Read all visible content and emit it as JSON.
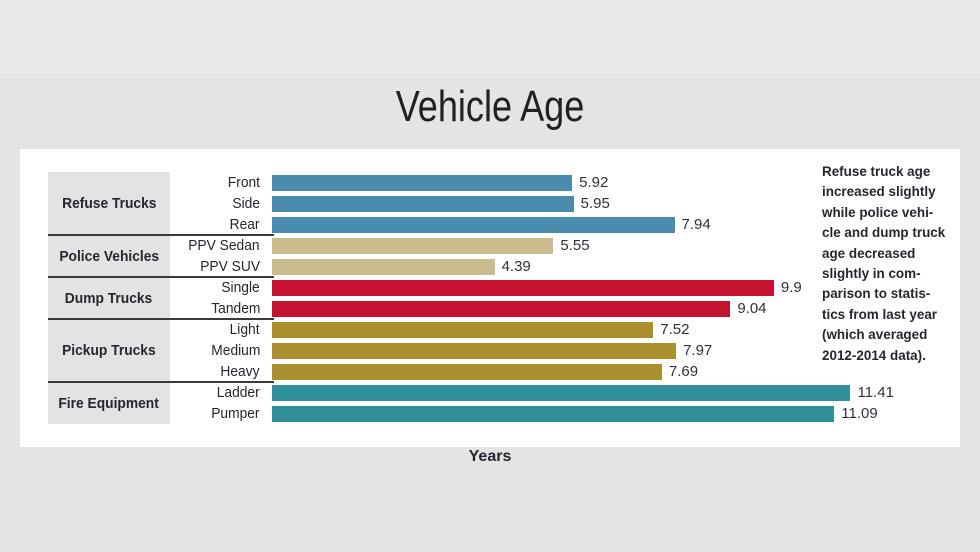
{
  "title": "Vehicle Age",
  "x_axis_label": "Years",
  "side_note": "Refuse truck age\nincreased slightly\nwhile police vehi-\ncle and dump truck\nage decreased\nslightly in com-\nparison to statis-\ntics from last year\n(which averaged\n2012-2014 data).",
  "colors": {
    "page_background": "#e4e4e4",
    "top_band": "#e8e8e8",
    "panel_background": "#ffffff",
    "group_box_background": "#e3e3e3",
    "separator_line": "#3a3a3a",
    "text": "#26262e",
    "refuse_trucks_blue": "#4a8cad",
    "police_vehicles_tan": "#cbbc8e",
    "dump_trucks_red": "#c41230",
    "pickup_trucks_gold": "#a98f2e",
    "fire_equipment_teal": "#30909a"
  },
  "chart_data": {
    "type": "bar",
    "orientation": "horizontal",
    "title": "Vehicle Age",
    "xlabel": "Years",
    "xlim": [
      0,
      12
    ],
    "grid": false,
    "legend": false,
    "groups": [
      {
        "label": "Refuse Trucks",
        "color": "#4a8cad",
        "bars": [
          {
            "label": "Front",
            "value": 5.92,
            "display": "5.92"
          },
          {
            "label": "Side",
            "value": 5.95,
            "display": "5.95"
          },
          {
            "label": "Rear",
            "value": 7.94,
            "display": "7.94"
          }
        ]
      },
      {
        "label": "Police Vehicles",
        "color": "#cbbc8e",
        "bars": [
          {
            "label": "PPV Sedan",
            "value": 5.55,
            "display": "5.55"
          },
          {
            "label": "PPV SUV",
            "value": 4.39,
            "display": "4.39"
          }
        ]
      },
      {
        "label": "Dump Trucks",
        "color": "#c41230",
        "bars": [
          {
            "label": "Single",
            "value": 9.9,
            "display": "9.9"
          },
          {
            "label": "Tandem",
            "value": 9.04,
            "display": "9.04"
          }
        ]
      },
      {
        "label": "Pickup Trucks",
        "color": "#a98f2e",
        "bars": [
          {
            "label": "Light",
            "value": 7.52,
            "display": "7.52"
          },
          {
            "label": "Medium",
            "value": 7.97,
            "display": "7.97"
          },
          {
            "label": "Heavy",
            "value": 7.69,
            "display": "7.69"
          }
        ]
      },
      {
        "label": "Fire Equipment",
        "color": "#30909a",
        "bars": [
          {
            "label": "Ladder",
            "value": 11.41,
            "display": "11.41"
          },
          {
            "label": "Pumper",
            "value": 11.09,
            "display": "11.09"
          }
        ]
      }
    ]
  }
}
